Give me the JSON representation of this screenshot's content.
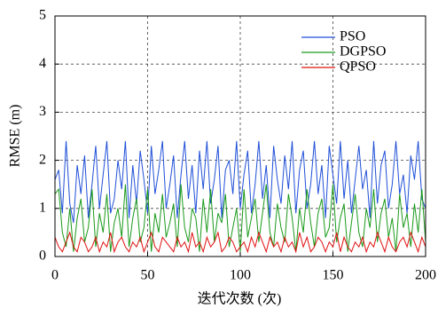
{
  "chart_data": {
    "type": "line",
    "xlabel": "迭代次数 (次)",
    "ylabel": "RMSE (m)",
    "x": [
      0,
      2,
      4,
      6,
      8,
      10,
      12,
      14,
      16,
      18,
      20,
      22,
      24,
      26,
      28,
      30,
      32,
      34,
      36,
      38,
      40,
      42,
      44,
      46,
      48,
      50,
      52,
      54,
      56,
      58,
      60,
      62,
      64,
      66,
      68,
      70,
      72,
      74,
      76,
      78,
      80,
      82,
      84,
      86,
      88,
      90,
      92,
      94,
      96,
      98,
      100,
      102,
      104,
      106,
      108,
      110,
      112,
      114,
      116,
      118,
      120,
      122,
      124,
      126,
      128,
      130,
      132,
      134,
      136,
      138,
      140,
      142,
      144,
      146,
      148,
      150,
      152,
      154,
      156,
      158,
      160,
      162,
      164,
      166,
      168,
      170,
      172,
      174,
      176,
      178,
      180,
      182,
      184,
      186,
      188,
      190,
      192,
      194,
      196,
      198,
      200
    ],
    "series": [
      {
        "name": "PSO",
        "color": "#1f4fd8",
        "values": [
          1.6,
          1.8,
          0.9,
          2.4,
          1.1,
          0.7,
          1.9,
          1.3,
          2.1,
          0.8,
          1.5,
          2.3,
          1.0,
          1.7,
          2.4,
          0.9,
          1.2,
          2.0,
          1.4,
          2.4,
          0.8,
          1.9,
          1.1,
          2.2,
          1.6,
          0.9,
          2.3,
          1.3,
          1.8,
          2.4,
          1.0,
          1.5,
          2.1,
          0.8,
          1.7,
          2.4,
          1.2,
          1.9,
          0.9,
          2.2,
          1.4,
          2.4,
          1.1,
          1.6,
          2.3,
          0.8,
          1.8,
          2.0,
          1.3,
          2.4,
          1.0,
          1.7,
          2.2,
          0.9,
          1.5,
          2.4,
          1.2,
          1.9,
          0.8,
          2.3,
          1.6,
          1.1,
          2.1,
          1.4,
          2.4,
          0.9,
          1.8,
          2.2,
          1.0,
          1.5,
          2.4,
          1.3,
          1.9,
          0.8,
          2.3,
          1.7,
          1.1,
          2.4,
          1.2,
          2.0,
          0.9,
          1.6,
          2.3,
          1.4,
          1.8,
          0.8,
          2.4,
          1.1,
          1.9,
          2.2,
          1.0,
          1.5,
          2.4,
          1.3,
          1.7,
          0.9,
          2.1,
          1.6,
          2.4,
          1.2,
          1.0
        ]
      },
      {
        "name": "DGPSO",
        "color": "#1a9a1a",
        "values": [
          1.3,
          1.4,
          0.5,
          0.2,
          1.0,
          0.1,
          0.8,
          1.2,
          0.3,
          0.6,
          1.4,
          0.2,
          0.9,
          0.5,
          1.3,
          0.1,
          0.7,
          1.0,
          0.4,
          1.5,
          0.2,
          0.8,
          1.2,
          0.3,
          0.6,
          1.4,
          0.1,
          0.9,
          0.5,
          1.3,
          0.4,
          0.7,
          1.1,
          0.2,
          1.5,
          0.6,
          0.3,
          1.0,
          0.8,
          0.1,
          1.2,
          0.5,
          1.4,
          0.3,
          0.9,
          0.7,
          1.3,
          0.2,
          0.6,
          1.0,
          0.1,
          1.4,
          0.4,
          0.8,
          1.2,
          0.3,
          0.9,
          1.5,
          0.5,
          0.2,
          1.1,
          0.6,
          0.3,
          1.3,
          0.8,
          0.1,
          1.0,
          0.5,
          1.4,
          0.7,
          0.2,
          0.9,
          1.2,
          0.4,
          0.6,
          1.5,
          0.3,
          0.8,
          1.1,
          0.1,
          0.7,
          1.3,
          0.5,
          0.2,
          1.0,
          0.6,
          1.4,
          0.3,
          0.9,
          1.2,
          0.4,
          0.8,
          0.1,
          1.3,
          0.6,
          0.9,
          0.2,
          1.1,
          0.5,
          1.4,
          0.3
        ]
      },
      {
        "name": "QPSO",
        "color": "#e01010",
        "values": [
          0.4,
          0.2,
          0.1,
          0.3,
          0.5,
          0.2,
          0.1,
          0.4,
          0.3,
          0.1,
          0.2,
          0.4,
          0.1,
          0.3,
          0.2,
          0.5,
          0.1,
          0.3,
          0.4,
          0.2,
          0.1,
          0.3,
          0.2,
          0.4,
          0.1,
          0.3,
          0.5,
          0.2,
          0.1,
          0.4,
          0.3,
          0.2,
          0.1,
          0.4,
          0.2,
          0.3,
          0.1,
          0.5,
          0.2,
          0.3,
          0.1,
          0.4,
          0.2,
          0.3,
          0.5,
          0.1,
          0.2,
          0.4,
          0.3,
          0.1,
          0.2,
          0.3,
          0.1,
          0.4,
          0.2,
          0.5,
          0.3,
          0.1,
          0.4,
          0.2,
          0.3,
          0.1,
          0.4,
          0.2,
          0.3,
          0.1,
          0.5,
          0.2,
          0.4,
          0.1,
          0.2,
          0.4,
          0.3,
          0.1,
          0.3,
          0.2,
          0.5,
          0.1,
          0.4,
          0.2,
          0.1,
          0.3,
          0.2,
          0.4,
          0.1,
          0.3,
          0.2,
          0.5,
          0.3,
          0.1,
          0.4,
          0.2,
          0.1,
          0.3,
          0.4,
          0.2,
          0.5,
          0.3,
          0.1,
          0.4,
          0.2
        ]
      }
    ],
    "xlim": [
      0,
      200
    ],
    "xticks": [
      0,
      50,
      100,
      150,
      200
    ],
    "ylim": [
      0,
      5
    ],
    "yticks": [
      0,
      1,
      2,
      3,
      4,
      5
    ],
    "grid": true,
    "legend": "upper right"
  }
}
